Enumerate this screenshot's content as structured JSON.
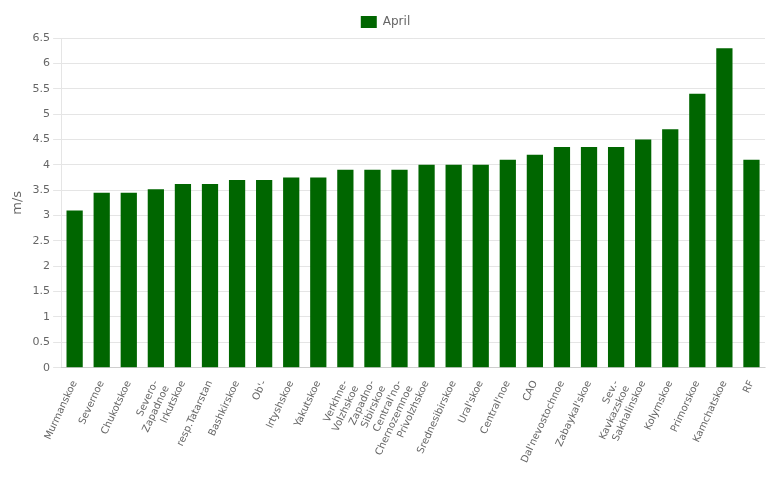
{
  "chart_data": {
    "type": "bar",
    "categories": [
      "Murmanskoe",
      "Severnoe",
      "Chukotskoe",
      "Severo-\nZapadnoe",
      "Irkutskoe",
      "resp.Tatarstan",
      "Bashkirskoe",
      "Ob'-",
      "Irtyshskoe",
      "Yakutskoe",
      "Verkhne-\nVolzhskoe",
      "Zapadno-\nSibirskoe",
      "Central'no-\nChernozemnoe",
      "Privolzhskoe",
      "Srednesibirskoe",
      "Ural'skoe",
      "Central'noe",
      "CAO",
      "Dal'nevostochnoe",
      "Zabaykal'skoe",
      "Sev.-\nKavkazskoe",
      "Sakhalinskoe",
      "Kolymskoe",
      "Primorskoe",
      "Kamchatskoe",
      "RF"
    ],
    "series": [
      {
        "name": "April",
        "color": "#006600",
        "values": [
          3.1,
          3.45,
          3.45,
          3.52,
          3.62,
          3.62,
          3.7,
          3.7,
          3.75,
          3.75,
          3.9,
          3.9,
          3.9,
          4.0,
          4.0,
          4.0,
          4.1,
          4.2,
          4.35,
          4.35,
          4.35,
          4.5,
          4.7,
          5.4,
          6.3,
          4.1
        ]
      }
    ],
    "ylabel": "m/s",
    "ylim": [
      0,
      6.5
    ],
    "yticks": [
      0,
      0.5,
      1,
      1.5,
      2,
      2.5,
      3,
      3.5,
      4,
      4.5,
      5,
      5.5,
      6,
      6.5
    ],
    "grid": true,
    "legend": "top"
  }
}
